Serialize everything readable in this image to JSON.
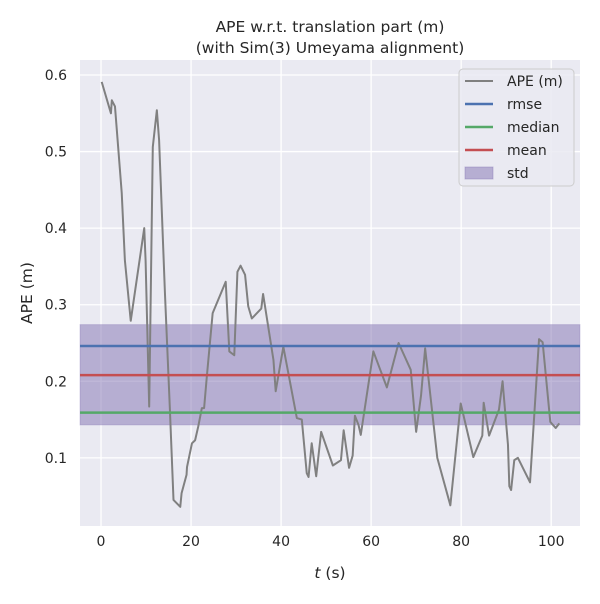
{
  "chart_data": {
    "type": "line",
    "title": "APE w.r.t. translation part (m)",
    "subtitle": "(with Sim(3) Umeyama alignment)",
    "xlabel_var": "t",
    "xlabel_unit": " (s)",
    "ylabel": "APE (m)",
    "xlim": [
      -4.67,
      106.4
    ],
    "ylim": [
      0.011,
      0.6196
    ],
    "xticks": [
      0,
      20,
      40,
      60,
      80,
      100
    ],
    "xtick_labels": [
      "0",
      "20",
      "40",
      "60",
      "80",
      "100"
    ],
    "yticks": [
      0.1,
      0.2,
      0.3,
      0.4,
      0.5,
      0.6
    ],
    "ytick_labels": [
      "0.1",
      "0.2",
      "0.3",
      "0.4",
      "0.5",
      "0.6"
    ],
    "grid": true,
    "legend_position": "top-right",
    "series": [
      {
        "name": "APE (m)",
        "color": "#808080",
        "x": [
          0.15,
          2.2,
          2.4,
          3.1,
          4.6,
          5.3,
          6.6,
          9.6,
          9.9,
          10.7,
          11.5,
          12.4,
          12.9,
          14.2,
          15.3,
          16.1,
          17.6,
          17.9,
          19.0,
          19.1,
          20.2,
          20.9,
          21.6,
          22.4,
          22.9,
          23.5,
          24.8,
          27.7,
          28.5,
          29.6,
          30.3,
          31.0,
          32.0,
          32.7,
          33.5,
          35.6,
          36.0,
          38.3,
          38.8,
          40.5,
          43.5,
          44.6,
          45.7,
          46.1,
          46.8,
          47.8,
          48.9,
          51.5,
          53.3,
          53.9,
          55.1,
          55.9,
          56.4,
          57.2,
          57.7,
          60.5,
          63.5,
          66.1,
          68.8,
          70.0,
          71.1,
          72.0,
          74.7,
          77.6,
          79.9,
          82.7,
          84.7,
          85.0,
          86.2,
          88.4,
          89.2,
          90.4,
          90.7,
          91.1,
          91.8,
          92.6,
          95.3,
          97.3,
          98.1,
          99.8,
          100.4,
          101.0,
          101.8
        ],
        "y": [
          0.591,
          0.55,
          0.567,
          0.559,
          0.446,
          0.358,
          0.279,
          0.4,
          0.358,
          0.167,
          0.506,
          0.554,
          0.515,
          0.315,
          0.163,
          0.045,
          0.036,
          0.054,
          0.078,
          0.088,
          0.119,
          0.123,
          0.141,
          0.165,
          0.165,
          0.206,
          0.289,
          0.33,
          0.239,
          0.234,
          0.343,
          0.351,
          0.339,
          0.298,
          0.282,
          0.295,
          0.314,
          0.228,
          0.187,
          0.245,
          0.152,
          0.15,
          0.08,
          0.075,
          0.119,
          0.076,
          0.134,
          0.09,
          0.097,
          0.136,
          0.087,
          0.103,
          0.155,
          0.143,
          0.13,
          0.239,
          0.192,
          0.25,
          0.215,
          0.134,
          0.182,
          0.243,
          0.1,
          0.038,
          0.171,
          0.101,
          0.129,
          0.172,
          0.129,
          0.163,
          0.2,
          0.117,
          0.063,
          0.058,
          0.097,
          0.1,
          0.068,
          0.255,
          0.251,
          0.147,
          0.143,
          0.139,
          0.145
        ]
      },
      {
        "name": "rmse",
        "color": "#4C72B0",
        "value": 0.246
      },
      {
        "name": "median",
        "color": "#55A868",
        "value": 0.159
      },
      {
        "name": "mean",
        "color": "#C44E52",
        "value": 0.208
      },
      {
        "name": "std",
        "color": "#8172B2",
        "range": [
          0.143,
          0.274
        ]
      }
    ]
  }
}
